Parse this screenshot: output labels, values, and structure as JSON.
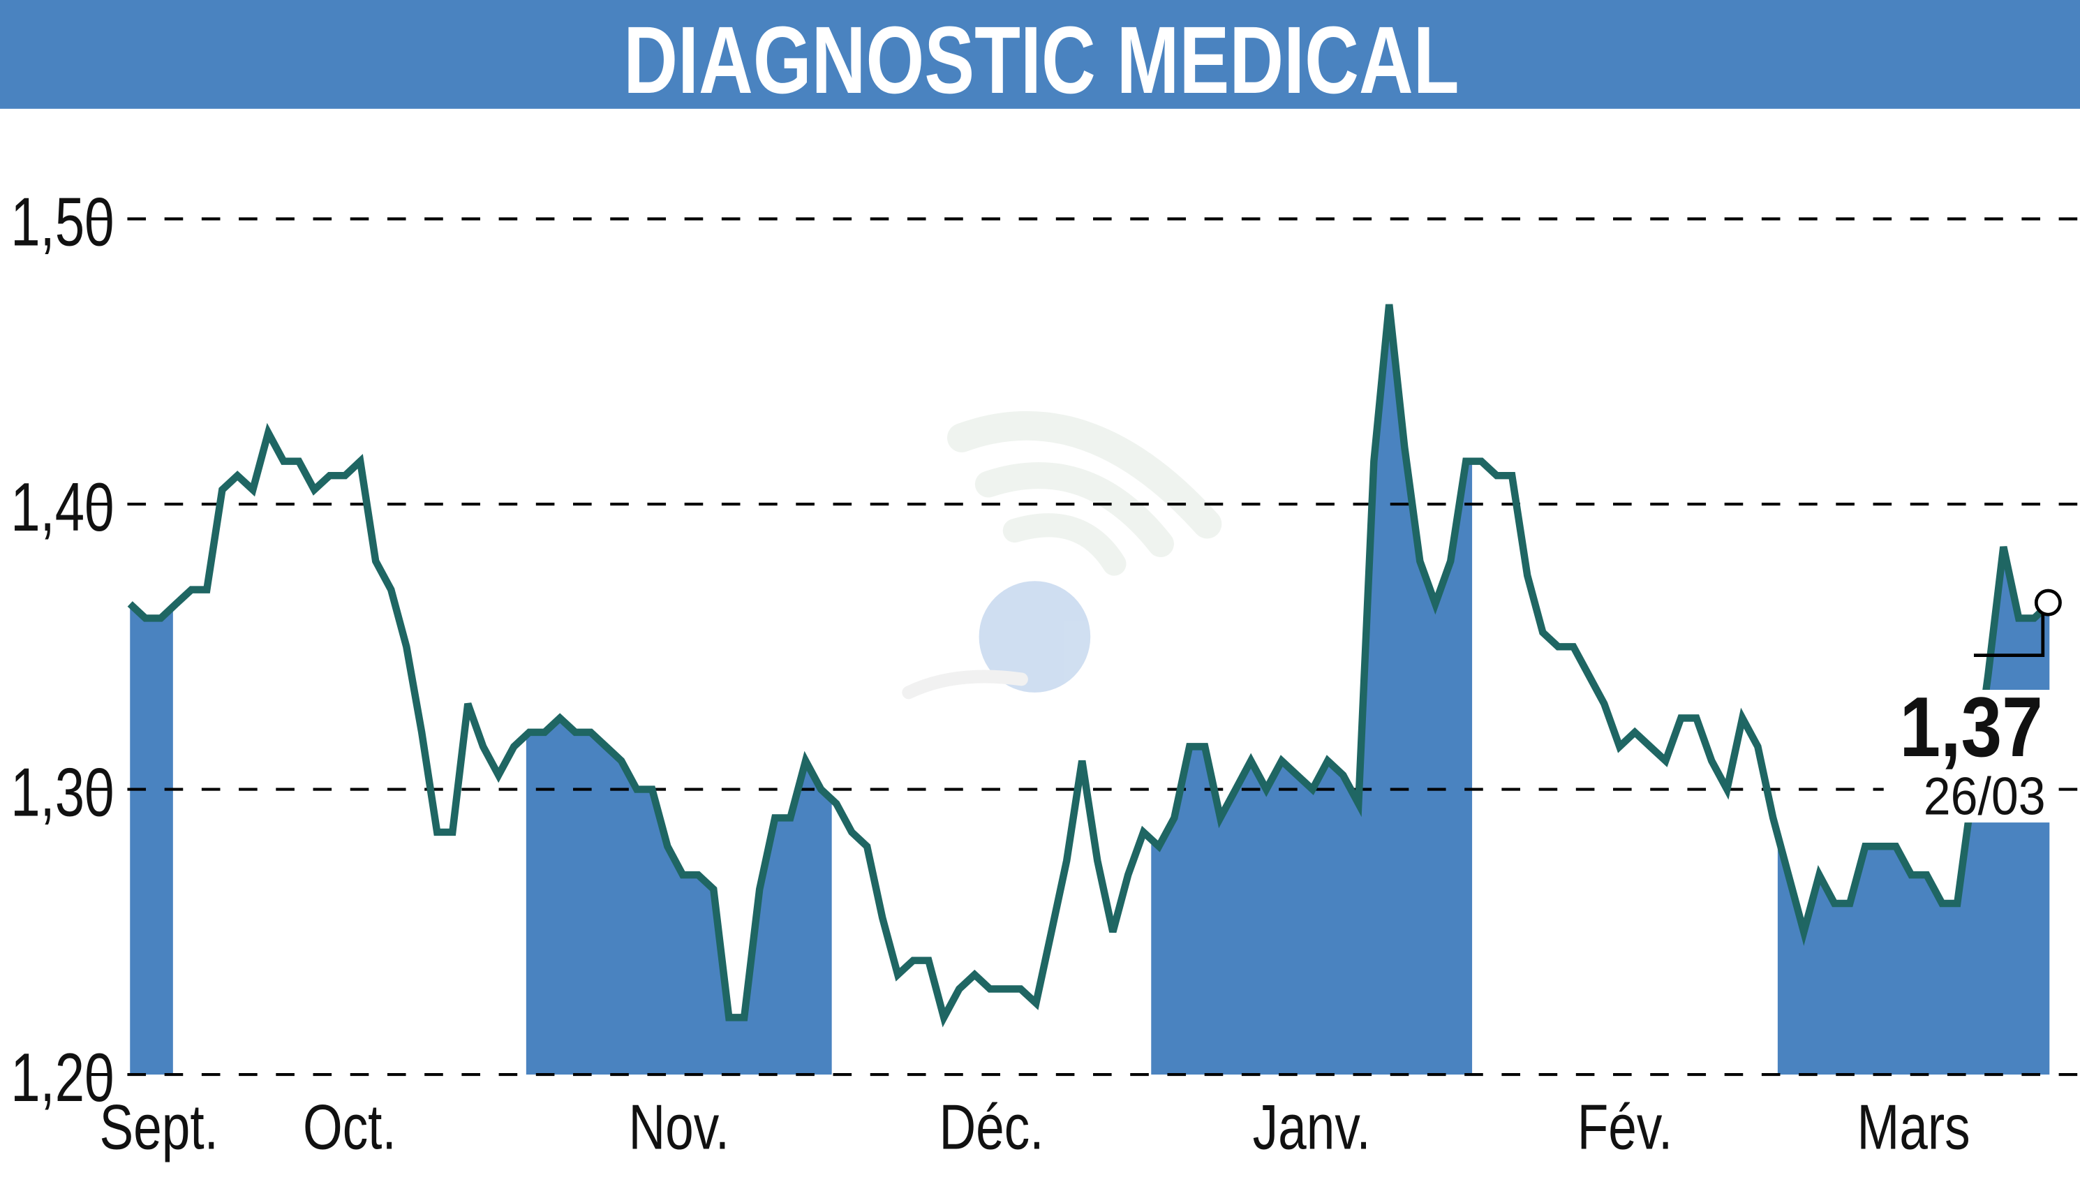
{
  "chart_data": {
    "type": "line",
    "title": "DIAGNOSTIC MEDICAL",
    "xlabel": "",
    "ylabel": "",
    "ylim": [
      1.2,
      1.5
    ],
    "yticks": [
      1.2,
      1.3,
      1.4,
      1.5
    ],
    "ytick_labels": [
      "1,20",
      "1,30",
      "1,40",
      "1,50"
    ],
    "grid": "horizontal-dashed",
    "months": [
      {
        "label": "Sept.",
        "start_index": 0,
        "shaded": true
      },
      {
        "label": "Oct.",
        "start_index": 2.8,
        "shaded": false
      },
      {
        "label": "Nov.",
        "start_index": 25.8,
        "shaded": true
      },
      {
        "label": "Déc.",
        "start_index": 45.7,
        "shaded": false
      },
      {
        "label": "Janv.",
        "start_index": 66.5,
        "shaded": true
      },
      {
        "label": "Fév.",
        "start_index": 87.4,
        "shaded": false
      },
      {
        "label": "Mars",
        "start_index": 107.3,
        "shaded": true
      }
    ],
    "values": [
      1.365,
      1.36,
      1.36,
      1.365,
      1.37,
      1.37,
      1.405,
      1.41,
      1.405,
      1.425,
      1.415,
      1.415,
      1.405,
      1.41,
      1.41,
      1.415,
      1.38,
      1.37,
      1.35,
      1.32,
      1.285,
      1.285,
      1.33,
      1.315,
      1.305,
      1.315,
      1.32,
      1.32,
      1.325,
      1.32,
      1.32,
      1.315,
      1.31,
      1.3,
      1.3,
      1.28,
      1.27,
      1.27,
      1.265,
      1.22,
      1.22,
      1.265,
      1.29,
      1.29,
      1.31,
      1.3,
      1.295,
      1.285,
      1.28,
      1.255,
      1.235,
      1.24,
      1.24,
      1.22,
      1.23,
      1.235,
      1.23,
      1.23,
      1.23,
      1.225,
      1.25,
      1.275,
      1.31,
      1.275,
      1.25,
      1.27,
      1.285,
      1.28,
      1.29,
      1.315,
      1.315,
      1.29,
      1.3,
      1.31,
      1.3,
      1.31,
      1.305,
      1.3,
      1.31,
      1.305,
      1.295,
      1.415,
      1.47,
      1.42,
      1.38,
      1.365,
      1.38,
      1.415,
      1.415,
      1.41,
      1.41,
      1.375,
      1.355,
      1.35,
      1.35,
      1.34,
      1.33,
      1.315,
      1.32,
      1.315,
      1.31,
      1.325,
      1.325,
      1.31,
      1.3,
      1.325,
      1.315,
      1.29,
      1.27,
      1.25,
      1.27,
      1.26,
      1.26,
      1.28,
      1.28,
      1.28,
      1.27,
      1.27,
      1.26,
      1.26,
      1.3,
      1.34,
      1.385,
      1.36,
      1.36,
      1.365
    ],
    "last_value_label": "1,37",
    "last_date_label": "26/03",
    "colors": {
      "header": "#4a83c0",
      "band": "#4a83c0",
      "line": "#1f6663",
      "title_text": "#ffffff",
      "grid": "#000000"
    }
  }
}
